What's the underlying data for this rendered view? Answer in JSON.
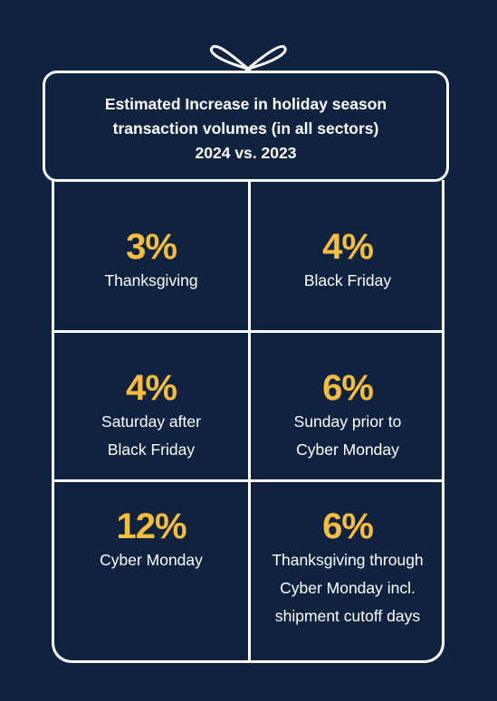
{
  "title_lines": [
    "Estimated Increase in holiday season",
    "transaction volumes (in all sectors)",
    "2024 vs. 2023"
  ],
  "cells": [
    {
      "value": "3%",
      "label_lines": [
        "Thanksgiving"
      ]
    },
    {
      "value": "4%",
      "label_lines": [
        "Black Friday"
      ]
    },
    {
      "value": "4%",
      "label_lines": [
        "Saturday after",
        "Black Friday"
      ]
    },
    {
      "value": "6%",
      "label_lines": [
        "Sunday prior to",
        "Cyber Monday"
      ]
    },
    {
      "value": "12%",
      "label_lines": [
        "Cyber Monday"
      ]
    },
    {
      "value": "6%",
      "label_lines": [
        "Thanksgiving through",
        "Cyber Monday incl.",
        "shipment cutoff days"
      ]
    }
  ],
  "colors": {
    "background": "#0f2341",
    "accent": "#f6be3c",
    "line": "#ffffff"
  },
  "icons": {
    "bow": "ribbon-bow-icon"
  }
}
